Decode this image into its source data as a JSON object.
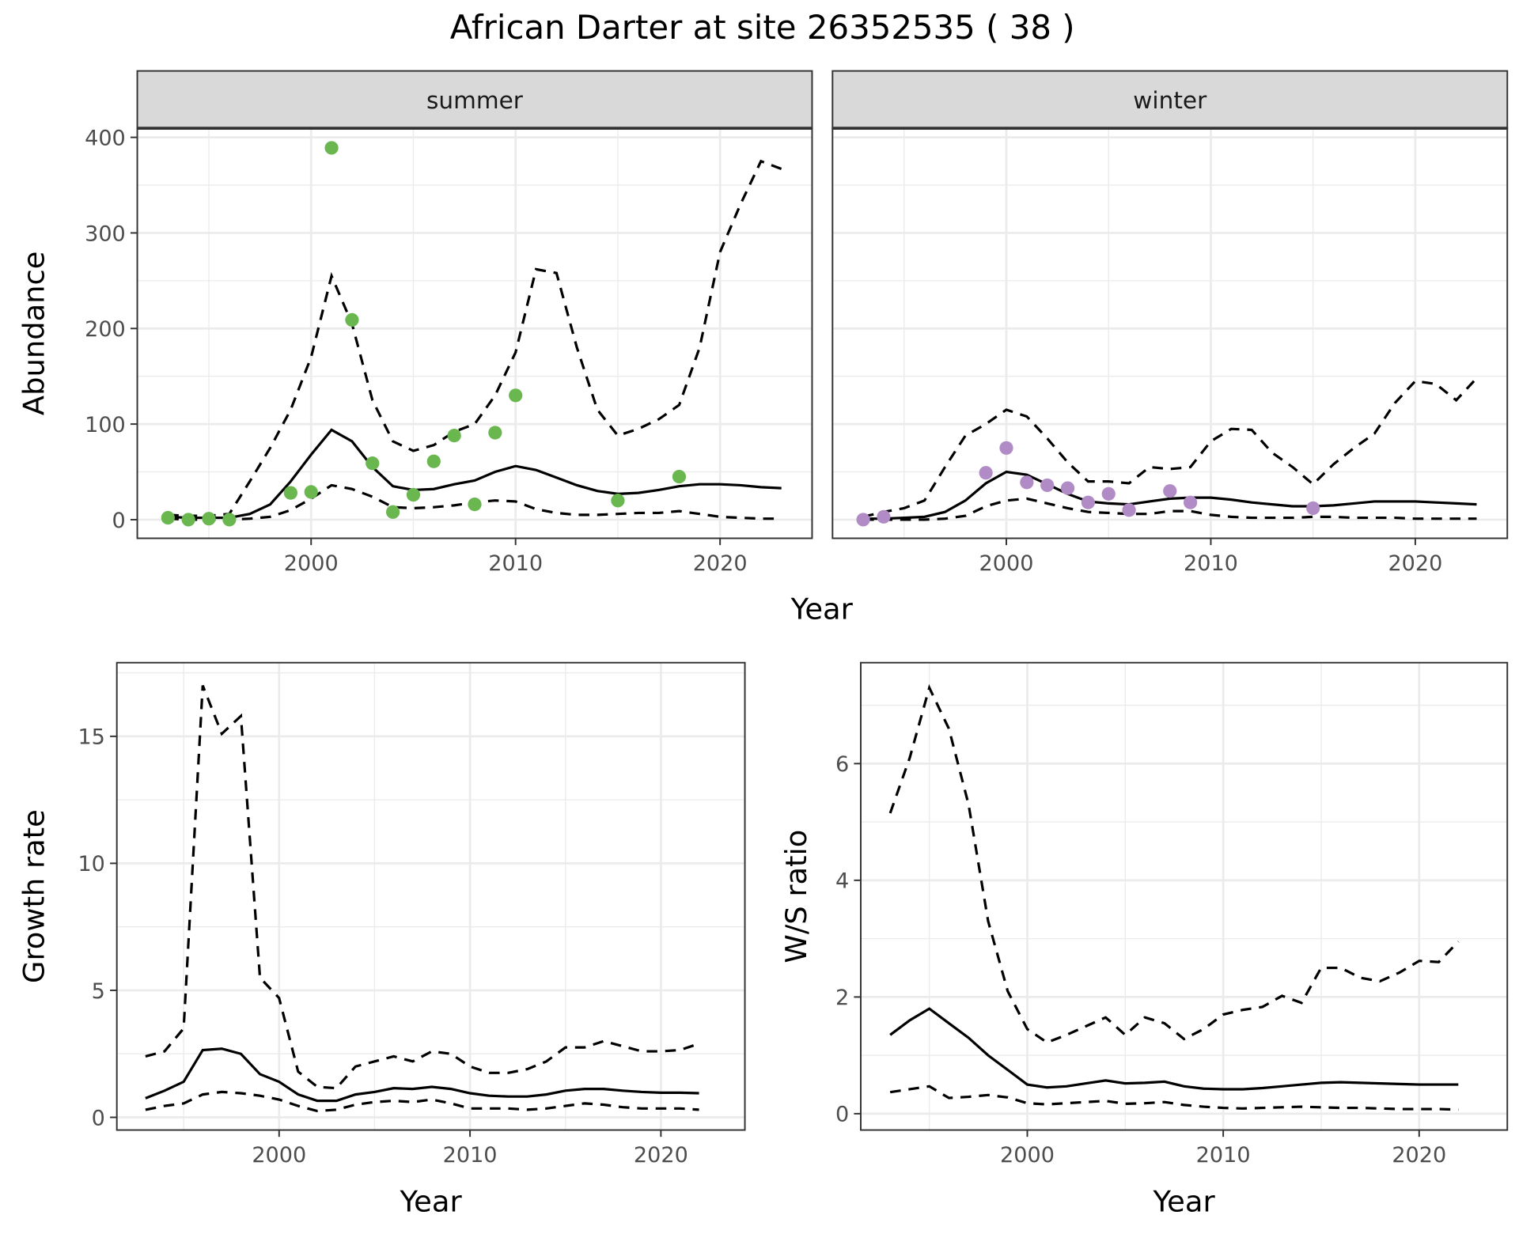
{
  "title": "African Darter at site 26352535 ( 38 )",
  "colors": {
    "summer_points": "#6ab750",
    "winter_points": "#b18bc6",
    "lines": "#000000",
    "strip_bg": "#d9d9d9",
    "grid": "#ebebeb"
  },
  "chart_data": [
    {
      "type": "line",
      "facet": "summer",
      "xlabel": "Year",
      "ylabel": "Abundance",
      "xlim": [
        1991.5,
        2024.5
      ],
      "ylim": [
        -19.5,
        409.5
      ],
      "xticks": [
        2000,
        2010,
        2020
      ],
      "yticks": [
        0,
        100,
        200,
        300,
        400
      ],
      "grid": true,
      "x": [
        1993,
        1994,
        1995,
        1996,
        1997,
        1998,
        1999,
        2000,
        2001,
        2002,
        2003,
        2004,
        2005,
        2006,
        2007,
        2008,
        2009,
        2010,
        2011,
        2012,
        2013,
        2014,
        2015,
        2016,
        2017,
        2018,
        2019,
        2020,
        2021,
        2022,
        2023
      ],
      "mean": [
        3,
        2,
        2,
        2,
        6,
        16,
        40,
        68,
        94,
        82,
        55,
        35,
        31,
        32,
        37,
        41,
        50,
        56,
        52,
        44,
        36,
        30,
        27,
        28,
        31,
        35,
        37,
        37,
        36,
        34,
        33
      ],
      "upper": [
        5,
        4,
        4,
        6,
        40,
        75,
        115,
        170,
        255,
        205,
        125,
        82,
        72,
        78,
        92,
        100,
        130,
        175,
        262,
        258,
        180,
        115,
        88,
        95,
        105,
        120,
        180,
        280,
        330,
        375,
        367
      ],
      "lower": [
        1,
        0,
        0,
        0,
        1,
        3,
        10,
        22,
        36,
        32,
        24,
        13,
        12,
        13,
        15,
        18,
        20,
        19,
        11,
        7,
        5,
        5,
        6,
        7,
        7,
        9,
        6,
        3,
        2,
        1,
        1
      ],
      "points": {
        "x": [
          1993,
          1994,
          1995,
          1996,
          1999,
          2000,
          2001,
          2002,
          2003,
          2004,
          2005,
          2006,
          2007,
          2008,
          2009,
          2010,
          2015,
          2018
        ],
        "y": [
          2,
          0,
          1,
          0,
          28,
          29,
          389,
          209,
          59,
          8,
          26,
          61,
          88,
          16,
          91,
          130,
          20,
          45
        ]
      }
    },
    {
      "type": "line",
      "facet": "winter",
      "xlabel": "Year",
      "ylabel": "Abundance",
      "xlim": [
        1991.5,
        2024.5
      ],
      "ylim": [
        -19.5,
        409.5
      ],
      "xticks": [
        2000,
        2010,
        2020
      ],
      "yticks": [
        0,
        100,
        200,
        300,
        400
      ],
      "grid": true,
      "x": [
        1993,
        1994,
        1995,
        1996,
        1997,
        1998,
        1999,
        2000,
        2001,
        2002,
        2003,
        2004,
        2005,
        2006,
        2007,
        2008,
        2009,
        2010,
        2011,
        2012,
        2013,
        2014,
        2015,
        2016,
        2017,
        2018,
        2019,
        2020,
        2021,
        2022,
        2023
      ],
      "mean": [
        1,
        1,
        2,
        3,
        8,
        20,
        38,
        50,
        47,
        37,
        27,
        19,
        17,
        16,
        19,
        22,
        23,
        23,
        21,
        18,
        16,
        14,
        14,
        15,
        17,
        19,
        19,
        19,
        18,
        17,
        16
      ],
      "upper": [
        3,
        8,
        12,
        20,
        55,
        88,
        100,
        115,
        108,
        85,
        60,
        40,
        40,
        38,
        55,
        53,
        55,
        82,
        95,
        94,
        70,
        55,
        37,
        58,
        75,
        90,
        122,
        145,
        142,
        125,
        148
      ],
      "lower": [
        0,
        0,
        0,
        0,
        1,
        4,
        14,
        20,
        22,
        17,
        12,
        8,
        7,
        6,
        6,
        9,
        9,
        5,
        3,
        2,
        2,
        2,
        3,
        3,
        2,
        2,
        2,
        1,
        1,
        1,
        1
      ],
      "points": {
        "x": [
          1993,
          1994,
          1999,
          2000,
          2001,
          2002,
          2003,
          2004,
          2005,
          2006,
          2008,
          2009,
          2015
        ],
        "y": [
          0,
          3,
          49,
          75,
          39,
          36,
          33,
          18,
          27,
          10,
          30,
          18,
          12
        ]
      }
    },
    {
      "type": "line",
      "xlabel": "Year",
      "ylabel": "Growth rate",
      "xlim": [
        1991.5,
        2024.4
      ],
      "ylim": [
        -0.5,
        17.9
      ],
      "xticks": [
        2000,
        2010,
        2020
      ],
      "yticks": [
        0,
        5,
        10,
        15
      ],
      "grid": true,
      "x": [
        1993,
        1994,
        1995,
        1996,
        1997,
        1998,
        1999,
        2000,
        2001,
        2002,
        2003,
        2004,
        2005,
        2006,
        2007,
        2008,
        2009,
        2010,
        2011,
        2012,
        2013,
        2014,
        2015,
        2016,
        2017,
        2018,
        2019,
        2020,
        2021,
        2022
      ],
      "mean": [
        0.75,
        1.05,
        1.4,
        2.65,
        2.7,
        2.5,
        1.7,
        1.4,
        0.9,
        0.65,
        0.65,
        0.9,
        1.0,
        1.15,
        1.12,
        1.2,
        1.12,
        0.95,
        0.85,
        0.82,
        0.82,
        0.9,
        1.05,
        1.12,
        1.12,
        1.05,
        1.0,
        0.97,
        0.97,
        0.95
      ],
      "upper": [
        2.4,
        2.6,
        3.5,
        17,
        15.1,
        15.8,
        5.5,
        4.7,
        1.8,
        1.2,
        1.15,
        2.0,
        2.2,
        2.4,
        2.2,
        2.6,
        2.5,
        2.0,
        1.75,
        1.75,
        1.9,
        2.2,
        2.75,
        2.75,
        3.0,
        2.8,
        2.6,
        2.6,
        2.65,
        2.9
      ],
      "lower": [
        0.3,
        0.45,
        0.55,
        0.9,
        1.0,
        0.95,
        0.85,
        0.7,
        0.45,
        0.25,
        0.3,
        0.5,
        0.6,
        0.65,
        0.6,
        0.7,
        0.55,
        0.35,
        0.35,
        0.35,
        0.3,
        0.35,
        0.45,
        0.55,
        0.5,
        0.4,
        0.35,
        0.35,
        0.35,
        0.3
      ]
    },
    {
      "type": "line",
      "xlabel": "Year",
      "ylabel": "W/S ratio",
      "xlim": [
        1991.5,
        2024.5
      ],
      "ylim": [
        -0.28,
        7.73
      ],
      "xticks": [
        2000,
        2010,
        2020
      ],
      "yticks": [
        0,
        2,
        4,
        6
      ],
      "grid": true,
      "x": [
        1993,
        1994,
        1995,
        1996,
        1997,
        1998,
        1999,
        2000,
        2001,
        2002,
        2003,
        2004,
        2005,
        2006,
        2007,
        2008,
        2009,
        2010,
        2011,
        2012,
        2013,
        2014,
        2015,
        2016,
        2017,
        2018,
        2019,
        2020,
        2021,
        2022
      ],
      "mean": [
        1.35,
        1.6,
        1.8,
        1.55,
        1.3,
        1.0,
        0.75,
        0.5,
        0.45,
        0.47,
        0.52,
        0.57,
        0.52,
        0.53,
        0.55,
        0.47,
        0.43,
        0.42,
        0.42,
        0.44,
        0.47,
        0.5,
        0.53,
        0.54,
        0.53,
        0.52,
        0.51,
        0.5,
        0.5,
        0.5
      ],
      "upper": [
        5.15,
        6.1,
        7.3,
        6.6,
        5.3,
        3.3,
        2.1,
        1.45,
        1.22,
        1.35,
        1.5,
        1.65,
        1.35,
        1.65,
        1.55,
        1.28,
        1.45,
        1.7,
        1.78,
        1.83,
        2.02,
        1.9,
        2.5,
        2.5,
        2.33,
        2.27,
        2.42,
        2.62,
        2.6,
        2.95
      ],
      "lower": [
        0.37,
        0.42,
        0.47,
        0.27,
        0.29,
        0.32,
        0.28,
        0.18,
        0.16,
        0.18,
        0.2,
        0.22,
        0.17,
        0.18,
        0.2,
        0.15,
        0.12,
        0.1,
        0.09,
        0.1,
        0.11,
        0.12,
        0.11,
        0.1,
        0.1,
        0.09,
        0.08,
        0.08,
        0.08,
        0.07
      ]
    }
  ]
}
